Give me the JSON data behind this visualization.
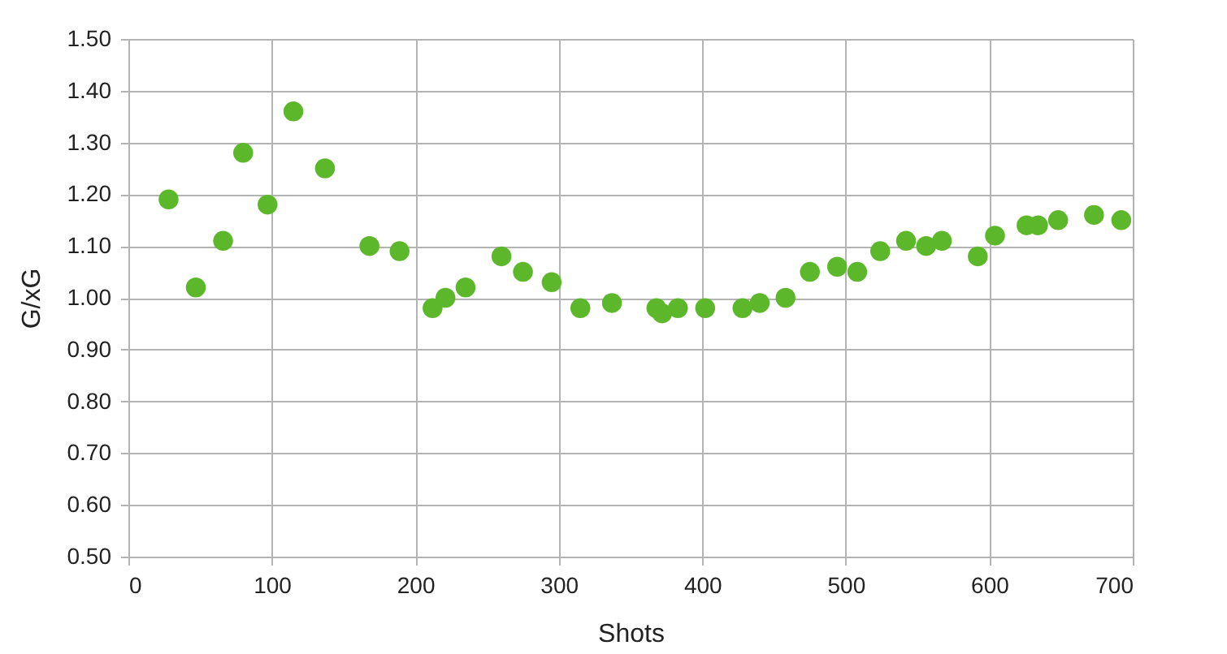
{
  "chart_data": {
    "type": "scatter",
    "xlabel": "Shots",
    "ylabel": "G/xG",
    "marker": "circle",
    "grid": true,
    "x": [
      28,
      47,
      66,
      80,
      97,
      115,
      137,
      168,
      189,
      212,
      221,
      235,
      260,
      275,
      295,
      315,
      337,
      368,
      372,
      383,
      402,
      428,
      440,
      458,
      475,
      494,
      508,
      524,
      542,
      556,
      567,
      592,
      604,
      626,
      634,
      648,
      673,
      692
    ],
    "series": [
      {
        "color": "#5cb82a",
        "values": [
          1.19,
          1.02,
          1.11,
          1.28,
          1.18,
          1.36,
          1.25,
          1.1,
          1.09,
          0.98,
          1.0,
          1.02,
          1.08,
          1.05,
          1.03,
          0.98,
          0.99,
          0.98,
          0.97,
          0.98,
          0.98,
          0.98,
          0.99,
          1.0,
          1.05,
          1.06,
          1.05,
          1.09,
          1.11,
          1.1,
          1.11,
          1.08,
          1.12,
          1.14,
          1.14,
          1.15,
          1.16,
          1.15
        ]
      }
    ],
    "xlim": [
      0,
      700
    ],
    "xticks": [
      0,
      100,
      200,
      300,
      400,
      500,
      600,
      700
    ],
    "ylim": [
      0.5,
      1.5
    ],
    "yticks": [
      {
        "value": 0.5,
        "label": "0.50"
      },
      {
        "value": 0.6,
        "label": "0.60"
      },
      {
        "value": 0.7,
        "label": "0.70"
      },
      {
        "value": 0.8,
        "label": "0.80"
      },
      {
        "value": 0.9,
        "label": "0.90"
      },
      {
        "value": 1.0,
        "label": "1.00"
      },
      {
        "value": 1.1,
        "label": "1.10"
      },
      {
        "value": 1.2,
        "label": "1.20"
      },
      {
        "value": 1.3,
        "label": "1.30"
      },
      {
        "value": 1.4,
        "label": "1.40"
      },
      {
        "value": 1.5,
        "label": "1.50"
      }
    ]
  }
}
